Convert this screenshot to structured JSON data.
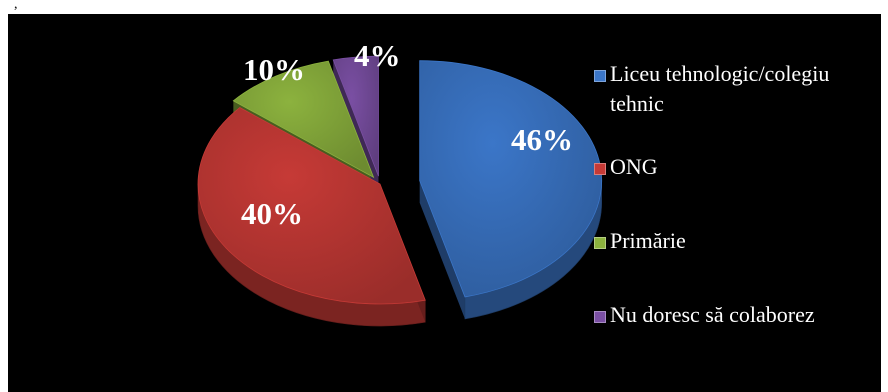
{
  "top_mark": ",",
  "chart_data": {
    "type": "pie",
    "style": "3d-exploded",
    "background": "#000000",
    "legend_position": "right",
    "slices": [
      {
        "label": "Liceu tehnologic/colegiu tehnic",
        "value": 46,
        "value_label": "46%",
        "color": "#3b76c8"
      },
      {
        "label": "ONG",
        "value": 40,
        "value_label": "40%",
        "color": "#c63a36"
      },
      {
        "label": "Primărie",
        "value": 10,
        "value_label": "10%",
        "color": "#8cb23e"
      },
      {
        "label": "Nu doresc să colaborez",
        "value": 4,
        "value_label": "4%",
        "color": "#7a4fa3"
      }
    ]
  }
}
